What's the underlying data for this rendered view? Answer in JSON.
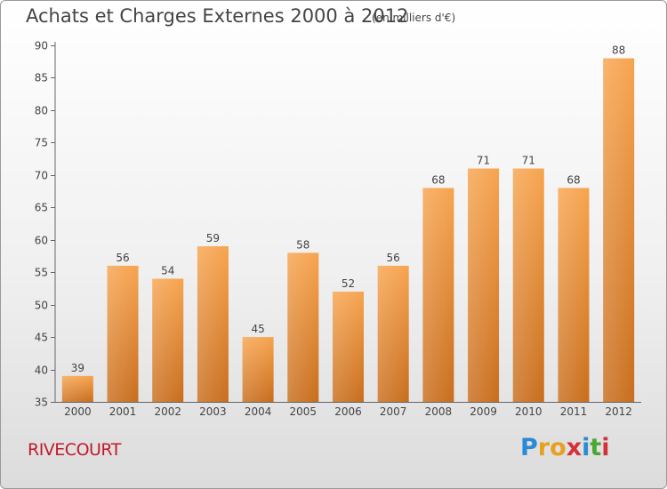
{
  "title": "Achats et Charges Externes 2000 à 2012",
  "unit": "(en milliers d'€)",
  "town": "RIVECOURT",
  "logo": {
    "letters": [
      "P",
      "r",
      "o",
      "x",
      "i",
      "t",
      "i"
    ],
    "colors": [
      "#2a8ad4",
      "#e8a020",
      "#e8a020",
      "#d8303a",
      "#2a8ad4",
      "#4aa830",
      "#d8303a"
    ]
  },
  "colors": {
    "bar_top": "#f7a44f",
    "bar_bottom": "#c86d1c",
    "text": "#444444",
    "town": "#c21a2a"
  },
  "chart_data": {
    "type": "bar",
    "title": "Achats et Charges Externes 2000 à 2012",
    "subtitle": "(en milliers d'€)",
    "categories": [
      "2000",
      "2001",
      "2002",
      "2003",
      "2004",
      "2005",
      "2006",
      "2007",
      "2008",
      "2009",
      "2010",
      "2011",
      "2012"
    ],
    "values": [
      39,
      56,
      54,
      59,
      45,
      58,
      52,
      56,
      68,
      71,
      71,
      68,
      88
    ],
    "ylim": [
      35,
      90
    ],
    "yticks": [
      35,
      40,
      45,
      50,
      55,
      60,
      65,
      70,
      75,
      80,
      85,
      90
    ],
    "grid": false,
    "data_labels": true
  }
}
